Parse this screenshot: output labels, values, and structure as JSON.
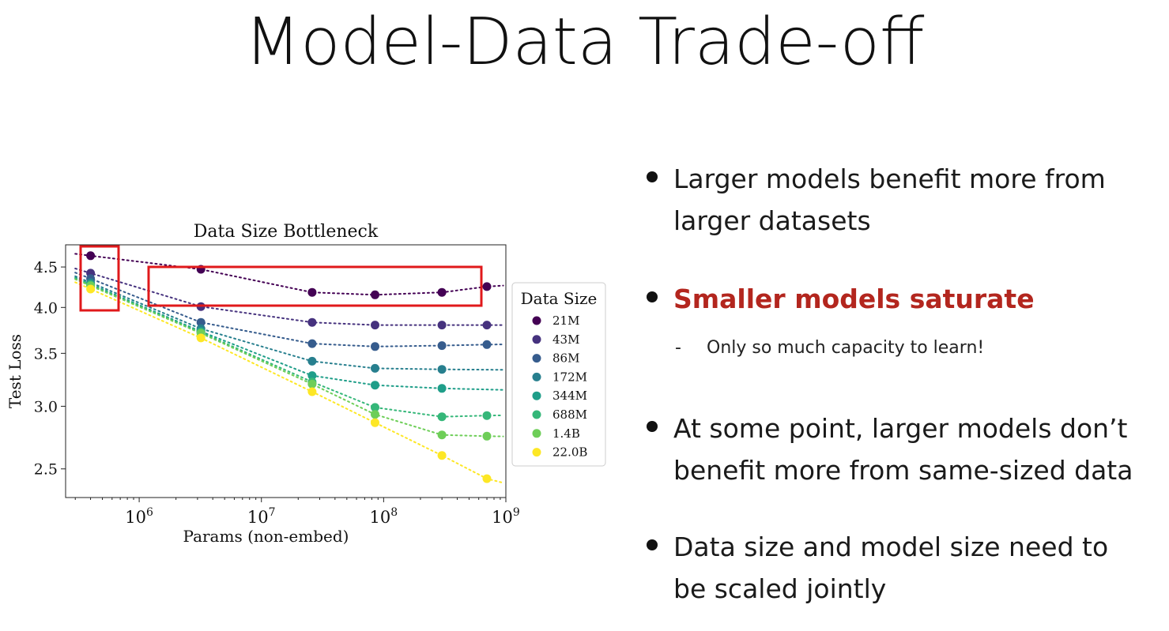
{
  "slide": {
    "title": "Model-Data Trade-off"
  },
  "bullets": [
    {
      "text": "Larger models benefit more from larger datasets",
      "lines": [
        "Larger models benefit more from",
        "larger datasets"
      ]
    },
    {
      "text": "Smaller models saturate",
      "lines": [
        "Smaller models saturate"
      ],
      "color": "#b3261e"
    },
    {
      "text": "At some point, larger models don’t benefit more from same-sized data",
      "lines": [
        "At some point, larger models don’t",
        "benefit more from same-sized data"
      ]
    },
    {
      "text": "Data size and model size need to be scaled jointly",
      "lines": [
        "Data size and model size need to",
        "be scaled jointly"
      ]
    }
  ],
  "sub_bullet": {
    "marker": "-",
    "text": "Only so much capacity to learn!"
  },
  "chart_data": {
    "type": "scatter",
    "title": "Data Size Bottleneck",
    "xlabel": "Params (non-embed)",
    "ylabel": "Test Loss",
    "x_scale": "log",
    "y_scale": "log",
    "xlim": [
      250000,
      1000000000
    ],
    "ylim": [
      2.3,
      4.8
    ],
    "x_ticks": [
      1000000,
      10000000,
      100000000,
      1000000000
    ],
    "x_tick_labels": [
      [
        "10",
        "6"
      ],
      [
        "10",
        "7"
      ],
      [
        "10",
        "8"
      ],
      [
        "10",
        "9"
      ]
    ],
    "y_ticks": [
      2.5,
      3.0,
      3.5,
      4.0,
      4.5
    ],
    "y_tick_labels": [
      "2.5",
      "3.0",
      "3.5",
      "4.0",
      "4.5"
    ],
    "x": [
      400000,
      3200000,
      26000000,
      85000000,
      300000000,
      700000000
    ],
    "legend_title": "Data Size",
    "legend_position": "right-outside",
    "fit_lines": "dotted",
    "series": [
      {
        "name": "21M",
        "color": "#440154",
        "values": [
          4.65,
          4.47,
          4.18,
          4.15,
          4.18,
          4.25
        ]
      },
      {
        "name": "43M",
        "color": "#46327e",
        "values": [
          4.42,
          4.01,
          3.83,
          3.8,
          3.8,
          3.8
        ]
      },
      {
        "name": "86M",
        "color": "#365c8d",
        "values": [
          4.35,
          3.83,
          3.6,
          3.57,
          3.58,
          3.59
        ]
      },
      {
        "name": "172M",
        "color": "#277f8e",
        "values": [
          4.3,
          3.76,
          3.42,
          3.35,
          3.34,
          null
        ]
      },
      {
        "name": "344M",
        "color": "#1f9e89",
        "values": [
          4.28,
          3.73,
          3.28,
          3.19,
          3.16,
          null
        ]
      },
      {
        "name": "688M",
        "color": "#35b779",
        "values": [
          4.27,
          3.72,
          3.22,
          2.99,
          2.91,
          2.92
        ]
      },
      {
        "name": "1.4B",
        "color": "#6ece58",
        "values": [
          4.26,
          3.71,
          3.2,
          2.93,
          2.76,
          2.75
        ]
      },
      {
        "name": "22.0B",
        "color": "#fde725",
        "values": [
          4.22,
          3.66,
          3.13,
          2.86,
          2.6,
          2.43
        ]
      }
    ],
    "highlight_boxes_color": "#e0191b"
  }
}
